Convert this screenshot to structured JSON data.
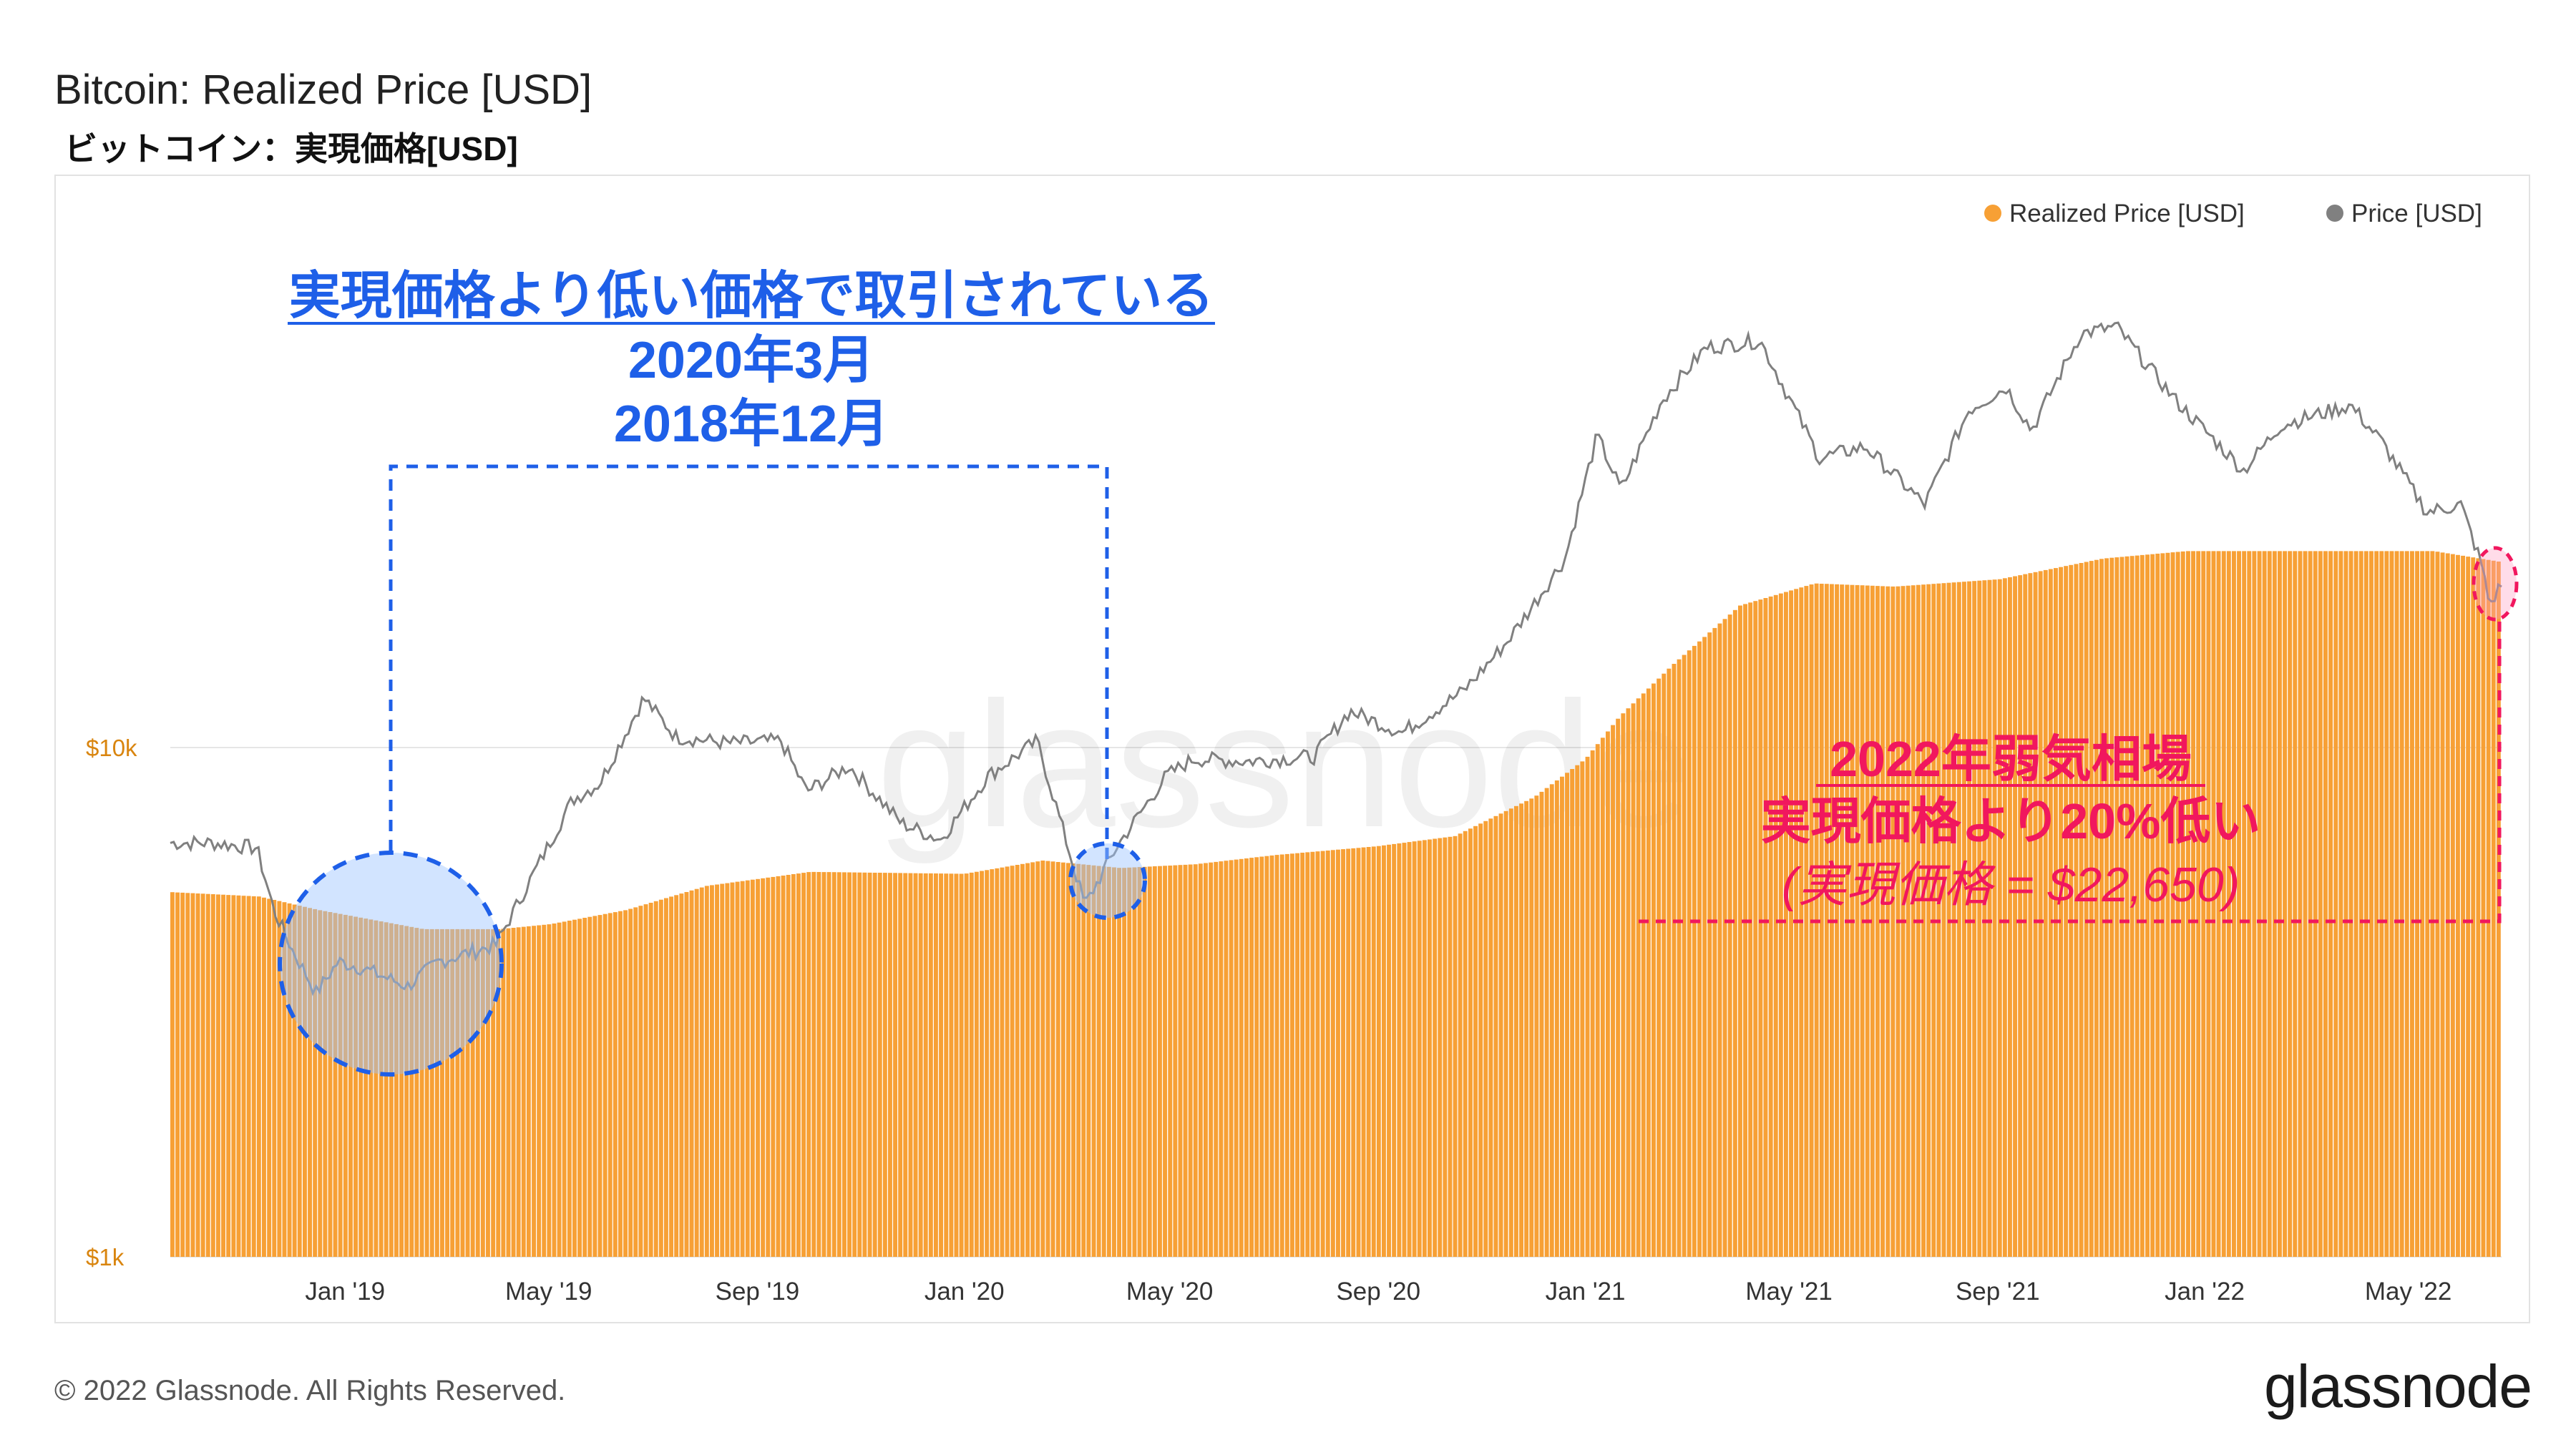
{
  "title": "Bitcoin: Realized Price [USD]",
  "subtitle": "ビットコイン：実現価格[USD]",
  "footer": "© 2022 Glassnode. All Rights Reserved.",
  "brand": "glassnode",
  "watermark": "glassnode",
  "legend": [
    {
      "label": "Realized Price [USD]",
      "color": "#f7a035"
    },
    {
      "label": "Price [USD]",
      "color": "#808080"
    }
  ],
  "annotations": {
    "blue": {
      "line1": "実現価格より低い価格で取引されている",
      "line2": "2020年3月",
      "line3": "2018年12月",
      "color": "#1e5fe8"
    },
    "red": {
      "line1": "2022年弱気相場",
      "line2": "実現価格より20%低い",
      "line3": "(実現価格 = $22,650)",
      "color": "#f1175e"
    }
  },
  "chart_data": {
    "type": "area",
    "title": "Bitcoin: Realized Price [USD]",
    "y_scale": "log",
    "ylim": [
      1000,
      100000
    ],
    "ytick_labels": [
      {
        "value": 10000,
        "label": "$10k"
      },
      {
        "value": 1000,
        "label": "$1k"
      }
    ],
    "xlim": [
      "2018-09-20",
      "2022-06-25"
    ],
    "xtick_labels": [
      {
        "date": "2019-01-01",
        "label": "Jan '19"
      },
      {
        "date": "2019-05-01",
        "label": "May '19"
      },
      {
        "date": "2019-09-01",
        "label": "Sep '19"
      },
      {
        "date": "2020-01-01",
        "label": "Jan '20"
      },
      {
        "date": "2020-05-01",
        "label": "May '20"
      },
      {
        "date": "2020-09-01",
        "label": "Sep '20"
      },
      {
        "date": "2021-01-01",
        "label": "Jan '21"
      },
      {
        "date": "2021-05-01",
        "label": "May '21"
      },
      {
        "date": "2021-09-01",
        "label": "Sep '21"
      },
      {
        "date": "2022-01-01",
        "label": "Jan '22"
      },
      {
        "date": "2022-05-01",
        "label": "May '22"
      }
    ],
    "grid": "horizontal",
    "legend_position": "top-right",
    "series": [
      {
        "name": "Realized Price [USD]",
        "color": "#f7a035",
        "points": [
          [
            "2018-09-20",
            5200
          ],
          [
            "2018-11-10",
            5100
          ],
          [
            "2018-12-15",
            4800
          ],
          [
            "2019-02-15",
            4400
          ],
          [
            "2019-04-01",
            4400
          ],
          [
            "2019-05-01",
            4500
          ],
          [
            "2019-06-15",
            4800
          ],
          [
            "2019-08-01",
            5350
          ],
          [
            "2019-10-01",
            5700
          ],
          [
            "2019-12-31",
            5650
          ],
          [
            "2020-02-15",
            6000
          ],
          [
            "2020-04-01",
            5800
          ],
          [
            "2020-05-15",
            5900
          ],
          [
            "2020-07-01",
            6150
          ],
          [
            "2020-08-30",
            6400
          ],
          [
            "2020-10-15",
            6700
          ],
          [
            "2020-12-01",
            8000
          ],
          [
            "2020-12-31",
            9500
          ],
          [
            "2021-01-20",
            11500
          ],
          [
            "2021-02-20",
            14500
          ],
          [
            "2021-04-01",
            19000
          ],
          [
            "2021-05-15",
            21000
          ],
          [
            "2021-07-01",
            20700
          ],
          [
            "2021-09-01",
            21400
          ],
          [
            "2021-11-01",
            23500
          ],
          [
            "2021-12-20",
            24300
          ],
          [
            "2022-03-01",
            24300
          ],
          [
            "2022-05-15",
            24300
          ],
          [
            "2022-06-25",
            23100
          ]
        ]
      },
      {
        "name": "Price [USD]",
        "color": "#808080",
        "points": [
          [
            "2018-09-20",
            6500
          ],
          [
            "2018-10-15",
            6500
          ],
          [
            "2018-11-10",
            6350
          ],
          [
            "2018-11-20",
            4800
          ],
          [
            "2018-12-01",
            4000
          ],
          [
            "2018-12-15",
            3300
          ],
          [
            "2018-12-28",
            3800
          ],
          [
            "2019-01-10",
            3700
          ],
          [
            "2019-02-07",
            3400
          ],
          [
            "2019-02-25",
            3800
          ],
          [
            "2019-03-31",
            4100
          ],
          [
            "2019-04-15",
            5100
          ],
          [
            "2019-05-15",
            7900
          ],
          [
            "2019-05-31",
            8500
          ],
          [
            "2019-06-26",
            12500
          ],
          [
            "2019-07-15",
            10500
          ],
          [
            "2019-08-15",
            10200
          ],
          [
            "2019-09-15",
            10300
          ],
          [
            "2019-09-30",
            8200
          ],
          [
            "2019-10-25",
            9200
          ],
          [
            "2019-11-25",
            7100
          ],
          [
            "2019-12-18",
            6600
          ],
          [
            "2020-01-15",
            8800
          ],
          [
            "2020-02-13",
            10300
          ],
          [
            "2020-03-12",
            4900
          ],
          [
            "2020-03-31",
            6400
          ],
          [
            "2020-04-29",
            8800
          ],
          [
            "2020-05-15",
            9500
          ],
          [
            "2020-06-15",
            9400
          ],
          [
            "2020-07-25",
            9600
          ],
          [
            "2020-08-15",
            11800
          ],
          [
            "2020-09-15",
            10700
          ],
          [
            "2020-10-21",
            12900
          ],
          [
            "2020-11-15",
            16000
          ],
          [
            "2020-12-01",
            19000
          ],
          [
            "2020-12-20",
            23500
          ],
          [
            "2021-01-08",
            41000
          ],
          [
            "2021-01-22",
            32000
          ],
          [
            "2021-02-15",
            48000
          ],
          [
            "2021-03-13",
            61000
          ],
          [
            "2021-04-14",
            63000
          ],
          [
            "2021-05-19",
            37000
          ],
          [
            "2021-06-15",
            39000
          ],
          [
            "2021-07-20",
            30000
          ],
          [
            "2021-08-15",
            46000
          ],
          [
            "2021-09-06",
            51000
          ],
          [
            "2021-09-21",
            42000
          ],
          [
            "2021-10-20",
            65000
          ],
          [
            "2021-11-10",
            67000
          ],
          [
            "2021-12-15",
            48000
          ],
          [
            "2022-01-24",
            35000
          ],
          [
            "2022-02-15",
            43000
          ],
          [
            "2022-03-28",
            47000
          ],
          [
            "2022-04-15",
            40000
          ],
          [
            "2022-05-12",
            29000
          ],
          [
            "2022-06-01",
            30000
          ],
          [
            "2022-06-13",
            23000
          ],
          [
            "2022-06-18",
            19000
          ],
          [
            "2022-06-25",
            21000
          ]
        ]
      }
    ]
  }
}
